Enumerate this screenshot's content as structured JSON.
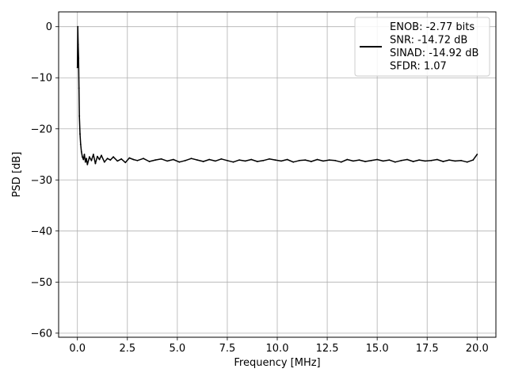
{
  "chart_data": {
    "type": "line",
    "xlabel": "Frequency [MHz]",
    "ylabel": "PSD [dB]",
    "xlim": [
      -0.94,
      20.94
    ],
    "ylim": [
      -60.8,
      2.9
    ],
    "x_ticks": [
      0.0,
      2.5,
      5.0,
      7.5,
      10.0,
      12.5,
      15.0,
      17.5,
      20.0
    ],
    "x_tick_labels": [
      "0.0",
      "2.5",
      "5.0",
      "7.5",
      "10.0",
      "12.5",
      "15.0",
      "17.5",
      "20.0"
    ],
    "y_ticks": [
      0,
      -10,
      -20,
      -30,
      -40,
      -50,
      -60
    ],
    "y_tick_labels": [
      "0",
      "−10",
      "−20",
      "−30",
      "−40",
      "−50",
      "−60"
    ],
    "grid": true,
    "legend_position": "top-right",
    "series": [
      {
        "name": "ENOB: -2.77 bits\nSNR: -14.72 dB\nSINAD: -14.92 dB\nSFDR: 1.07",
        "legend_lines": [
          "ENOB: -2.77 bits",
          "SNR: -14.72 dB",
          "SINAD: -14.92 dB",
          "SFDR: 1.07"
        ],
        "color": "#000000",
        "x": [
          0.0,
          0.02,
          0.04,
          0.06,
          0.08,
          0.1,
          0.13,
          0.16,
          0.2,
          0.25,
          0.3,
          0.35,
          0.4,
          0.45,
          0.5,
          0.6,
          0.7,
          0.8,
          0.9,
          1.0,
          1.1,
          1.2,
          1.35,
          1.5,
          1.65,
          1.8,
          2.0,
          2.2,
          2.4,
          2.6,
          2.8,
          3.0,
          3.3,
          3.6,
          3.9,
          4.2,
          4.5,
          4.8,
          5.1,
          5.4,
          5.7,
          6.0,
          6.3,
          6.6,
          6.9,
          7.2,
          7.5,
          7.8,
          8.1,
          8.4,
          8.7,
          9.0,
          9.3,
          9.6,
          9.9,
          10.2,
          10.5,
          10.8,
          11.1,
          11.4,
          11.7,
          12.0,
          12.3,
          12.6,
          12.9,
          13.2,
          13.5,
          13.8,
          14.1,
          14.4,
          14.7,
          15.0,
          15.3,
          15.6,
          15.9,
          16.2,
          16.5,
          16.8,
          17.1,
          17.4,
          17.7,
          18.0,
          18.3,
          18.6,
          18.9,
          19.2,
          19.5,
          19.8,
          20.0
        ],
        "y": [
          -8.0,
          0.0,
          -3.5,
          -6.2,
          -12.0,
          -17.5,
          -21.0,
          -23.0,
          -24.5,
          -25.5,
          -26.0,
          -25.0,
          -26.5,
          -25.8,
          -27.0,
          -25.5,
          -26.2,
          -25.0,
          -26.8,
          -25.4,
          -26.0,
          -25.2,
          -26.5,
          -25.8,
          -26.1,
          -25.5,
          -26.3,
          -25.9,
          -26.6,
          -25.7,
          -26.0,
          -26.2,
          -25.8,
          -26.4,
          -26.1,
          -25.9,
          -26.3,
          -26.0,
          -26.5,
          -26.2,
          -25.8,
          -26.1,
          -26.4,
          -26.0,
          -26.3,
          -25.9,
          -26.2,
          -26.5,
          -26.1,
          -26.3,
          -26.0,
          -26.4,
          -26.2,
          -25.9,
          -26.1,
          -26.3,
          -26.0,
          -26.5,
          -26.2,
          -26.1,
          -26.4,
          -26.0,
          -26.3,
          -26.1,
          -26.2,
          -26.5,
          -26.0,
          -26.3,
          -26.1,
          -26.4,
          -26.2,
          -26.0,
          -26.3,
          -26.1,
          -26.5,
          -26.2,
          -26.0,
          -26.4,
          -26.1,
          -26.3,
          -26.2,
          -26.0,
          -26.4,
          -26.1,
          -26.3,
          -26.2,
          -26.5,
          -26.1,
          -25.0
        ]
      }
    ]
  }
}
